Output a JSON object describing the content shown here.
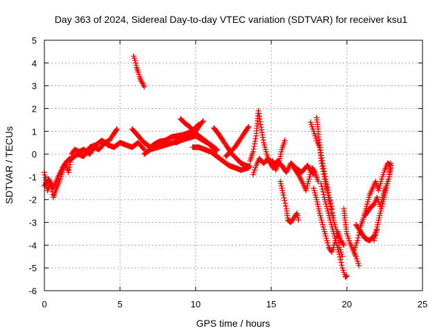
{
  "chart_data": {
    "type": "scatter",
    "title": "Day 363 of 2024, Sidereal Day-to-day VTEC variation (SDTVAR) for receiver ksu1",
    "xlabel": "GPS time / hours",
    "ylabel": "SDTVAR / TECUs",
    "xlim": [
      0,
      25
    ],
    "ylim": [
      -6,
      5
    ],
    "xticks": [
      0,
      5,
      10,
      15,
      20,
      25
    ],
    "yticks": [
      -6,
      -5,
      -4,
      -3,
      -2,
      -1,
      0,
      1,
      2,
      3,
      4,
      5
    ],
    "grid": true,
    "marker": "+",
    "color": "#ff0000",
    "series": [
      {
        "name": "SDTVAR",
        "segments": [
          [
            [
              0.0,
              -0.8
            ],
            [
              0.2,
              -1.6
            ],
            [
              0.4,
              -1.3
            ],
            [
              0.6,
              -1.9
            ],
            [
              0.8,
              -1.5
            ],
            [
              1.0,
              -1.2
            ],
            [
              1.2,
              -0.8
            ],
            [
              1.4,
              -0.4
            ],
            [
              1.6,
              -0.8
            ],
            [
              1.8,
              0.0
            ],
            [
              2.0,
              0.2
            ],
            [
              2.3,
              0.1
            ],
            [
              2.6,
              0.2
            ],
            [
              3.0,
              0.0
            ],
            [
              3.3,
              0.3
            ],
            [
              3.6,
              0.2
            ],
            [
              4.0,
              0.5
            ],
            [
              4.3,
              0.6
            ],
            [
              4.6,
              0.9
            ],
            [
              4.8,
              1.1
            ]
          ],
          [
            [
              0.0,
              -1.4
            ],
            [
              0.3,
              -1.1
            ],
            [
              0.6,
              -1.5
            ],
            [
              0.9,
              -1.0
            ],
            [
              1.2,
              -0.6
            ],
            [
              1.5,
              -0.3
            ],
            [
              1.8,
              -0.2
            ],
            [
              2.2,
              0.0
            ],
            [
              2.6,
              -0.1
            ],
            [
              3.0,
              0.3
            ],
            [
              3.4,
              0.4
            ],
            [
              3.8,
              0.6
            ],
            [
              4.2,
              0.4
            ],
            [
              4.6,
              0.3
            ],
            [
              5.0,
              0.5
            ],
            [
              5.4,
              0.4
            ],
            [
              5.8,
              0.3
            ],
            [
              6.2,
              0.5
            ],
            [
              6.6,
              0.2
            ]
          ],
          [
            [
              5.9,
              4.3
            ],
            [
              6.0,
              4.1
            ],
            [
              6.1,
              3.8
            ],
            [
              6.2,
              3.6
            ],
            [
              6.3,
              3.4
            ],
            [
              6.4,
              3.2
            ],
            [
              6.5,
              3.1
            ],
            [
              6.6,
              2.95
            ]
          ],
          [
            [
              5.8,
              1.1
            ],
            [
              6.0,
              0.95
            ],
            [
              6.2,
              0.8
            ],
            [
              6.4,
              0.65
            ],
            [
              6.6,
              0.5
            ],
            [
              6.8,
              0.4
            ],
            [
              7.0,
              0.3
            ],
            [
              7.3,
              0.45
            ],
            [
              7.6,
              0.55
            ],
            [
              8.0,
              0.6
            ],
            [
              8.4,
              0.75
            ],
            [
              8.8,
              0.8
            ],
            [
              9.2,
              0.85
            ],
            [
              9.6,
              0.95
            ],
            [
              10.0,
              1.0
            ],
            [
              10.3,
              1.3
            ],
            [
              10.5,
              1.45
            ]
          ],
          [
            [
              6.6,
              0.0
            ],
            [
              7.0,
              0.2
            ],
            [
              7.5,
              0.3
            ],
            [
              8.0,
              0.4
            ],
            [
              8.5,
              0.5
            ],
            [
              9.0,
              0.6
            ],
            [
              9.5,
              0.7
            ],
            [
              10.0,
              0.8
            ],
            [
              10.5,
              0.6
            ],
            [
              11.0,
              0.4
            ],
            [
              11.4,
              0.2
            ]
          ],
          [
            [
              9.0,
              1.55
            ],
            [
              9.3,
              1.35
            ],
            [
              9.6,
              1.2
            ],
            [
              9.9,
              1.0
            ],
            [
              10.2,
              0.8
            ],
            [
              10.5,
              0.65
            ],
            [
              10.8,
              0.5
            ],
            [
              11.1,
              0.3
            ],
            [
              11.4,
              0.15
            ]
          ],
          [
            [
              8.7,
              0.5
            ],
            [
              9.0,
              0.6
            ],
            [
              9.3,
              0.75
            ],
            [
              9.6,
              0.9
            ],
            [
              9.9,
              1.1
            ],
            [
              10.2,
              1.3
            ]
          ],
          [
            [
              9.8,
              0.3
            ],
            [
              10.2,
              0.3
            ],
            [
              10.6,
              0.2
            ],
            [
              11.0,
              0.1
            ],
            [
              11.4,
              -0.1
            ],
            [
              11.8,
              -0.3
            ],
            [
              12.2,
              -0.5
            ],
            [
              12.6,
              -0.6
            ],
            [
              13.0,
              -0.7
            ],
            [
              13.5,
              -0.6
            ]
          ],
          [
            [
              11.2,
              1.15
            ],
            [
              11.5,
              0.9
            ],
            [
              11.8,
              0.6
            ],
            [
              12.1,
              0.3
            ],
            [
              12.4,
              0.0
            ],
            [
              12.7,
              -0.2
            ],
            [
              13.0,
              -0.4
            ],
            [
              13.3,
              -0.5
            ],
            [
              13.6,
              -0.55
            ]
          ],
          [
            [
              12.0,
              -0.1
            ],
            [
              12.3,
              0.1
            ],
            [
              12.6,
              0.3
            ],
            [
              12.9,
              0.6
            ],
            [
              13.2,
              0.9
            ],
            [
              13.5,
              1.2
            ]
          ],
          [
            [
              13.6,
              -0.3
            ],
            [
              13.8,
              0.1
            ],
            [
              14.0,
              0.8
            ],
            [
              14.15,
              1.9
            ],
            [
              14.3,
              1.3
            ],
            [
              14.5,
              0.5
            ],
            [
              14.7,
              0.0
            ],
            [
              14.9,
              -0.4
            ],
            [
              15.1,
              -0.3
            ],
            [
              15.3,
              -0.7
            ],
            [
              15.5,
              -0.4
            ],
            [
              15.7,
              0.2
            ],
            [
              15.9,
              0.6
            ]
          ],
          [
            [
              13.8,
              -0.9
            ],
            [
              14.0,
              -0.5
            ],
            [
              14.2,
              -0.2
            ],
            [
              14.5,
              -0.4
            ],
            [
              14.8,
              -0.2
            ],
            [
              15.1,
              -0.6
            ],
            [
              15.4,
              -0.3
            ],
            [
              15.7,
              -0.5
            ],
            [
              16.0,
              -0.8
            ],
            [
              16.3,
              -0.4
            ],
            [
              16.6,
              -0.6
            ],
            [
              17.0,
              -0.8
            ],
            [
              17.4,
              -0.5
            ],
            [
              17.8,
              -0.9
            ]
          ],
          [
            [
              15.6,
              -1.2
            ],
            [
              15.8,
              -1.8
            ],
            [
              16.0,
              -2.4
            ],
            [
              16.1,
              -2.9
            ],
            [
              16.3,
              -3.0
            ],
            [
              16.5,
              -2.8
            ],
            [
              16.7,
              -2.6
            ],
            [
              16.8,
              -2.9
            ]
          ],
          [
            [
              16.5,
              -0.6
            ],
            [
              16.8,
              -0.9
            ],
            [
              17.1,
              -1.3
            ],
            [
              17.3,
              -1.6
            ],
            [
              17.5,
              -1.1
            ],
            [
              17.7,
              -0.6
            ],
            [
              17.9,
              -0.8
            ],
            [
              18.1,
              -1.2
            ]
          ],
          [
            [
              17.6,
              1.4
            ],
            [
              17.8,
              1.0
            ],
            [
              18.0,
              0.6
            ],
            [
              18.2,
              0.3
            ],
            [
              18.4,
              -0.4
            ],
            [
              18.6,
              -1.1
            ],
            [
              18.8,
              -1.8
            ],
            [
              19.0,
              -2.4
            ]
          ],
          [
            [
              18.0,
              1.6
            ],
            [
              18.1,
              1.1
            ],
            [
              18.2,
              0.4
            ],
            [
              18.3,
              -0.3
            ],
            [
              18.5,
              -1.0
            ],
            [
              18.7,
              -1.6
            ],
            [
              18.9,
              -2.2
            ],
            [
              19.1,
              -2.8
            ]
          ],
          [
            [
              17.8,
              -1.5
            ],
            [
              18.0,
              -2.0
            ],
            [
              18.2,
              -2.6
            ],
            [
              18.4,
              -3.1
            ],
            [
              18.6,
              -3.6
            ],
            [
              18.8,
              -4.1
            ],
            [
              19.0,
              -4.3
            ],
            [
              19.2,
              -3.9
            ],
            [
              19.4,
              -3.4
            ],
            [
              19.6,
              -3.8
            ],
            [
              19.8,
              -4.0
            ]
          ],
          [
            [
              18.3,
              -1.3
            ],
            [
              18.5,
              -1.9
            ],
            [
              18.7,
              -2.4
            ],
            [
              18.9,
              -2.9
            ],
            [
              19.1,
              -3.4
            ],
            [
              19.3,
              -3.9
            ],
            [
              19.5,
              -4.4
            ],
            [
              19.7,
              -5.0
            ],
            [
              19.9,
              -5.4
            ],
            [
              20.0,
              -5.35
            ]
          ],
          [
            [
              19.0,
              -2.6
            ],
            [
              19.2,
              -3.1
            ],
            [
              19.4,
              -3.6
            ],
            [
              19.5,
              -4.1
            ],
            [
              19.7,
              -4.5
            ]
          ],
          [
            [
              19.8,
              -2.4
            ],
            [
              19.9,
              -3.0
            ],
            [
              20.0,
              -3.5
            ],
            [
              20.2,
              -3.9
            ],
            [
              20.4,
              -4.2
            ],
            [
              20.6,
              -4.5
            ],
            [
              20.8,
              -4.9
            ]
          ],
          [
            [
              20.6,
              -3.1
            ],
            [
              20.9,
              -3.4
            ],
            [
              21.2,
              -3.7
            ],
            [
              21.5,
              -3.8
            ],
            [
              21.8,
              -3.6
            ],
            [
              22.0,
              -3.3
            ]
          ],
          [
            [
              20.5,
              -4.2
            ],
            [
              20.7,
              -3.8
            ],
            [
              20.9,
              -3.2
            ],
            [
              21.1,
              -2.8
            ],
            [
              21.3,
              -2.3
            ],
            [
              21.5,
              -1.8
            ],
            [
              21.7,
              -1.5
            ],
            [
              21.9,
              -1.2
            ],
            [
              22.1,
              -1.6
            ],
            [
              22.3,
              -1.1
            ],
            [
              22.5,
              -0.7
            ],
            [
              22.7,
              -0.4
            ],
            [
              22.9,
              -0.5
            ]
          ],
          [
            [
              21.2,
              -2.7
            ],
            [
              21.5,
              -2.4
            ],
            [
              21.8,
              -2.2
            ],
            [
              22.0,
              -1.9
            ],
            [
              22.2,
              -2.3
            ],
            [
              22.4,
              -1.8
            ],
            [
              22.6,
              -1.4
            ],
            [
              22.8,
              -1.0
            ],
            [
              22.9,
              -0.6
            ]
          ],
          [
            [
              21.8,
              -3.8
            ],
            [
              22.0,
              -3.2
            ],
            [
              22.2,
              -2.6
            ],
            [
              22.4,
              -2.1
            ],
            [
              22.6,
              -1.5
            ],
            [
              22.8,
              -1.0
            ],
            [
              22.9,
              -0.4
            ]
          ]
        ]
      }
    ]
  }
}
